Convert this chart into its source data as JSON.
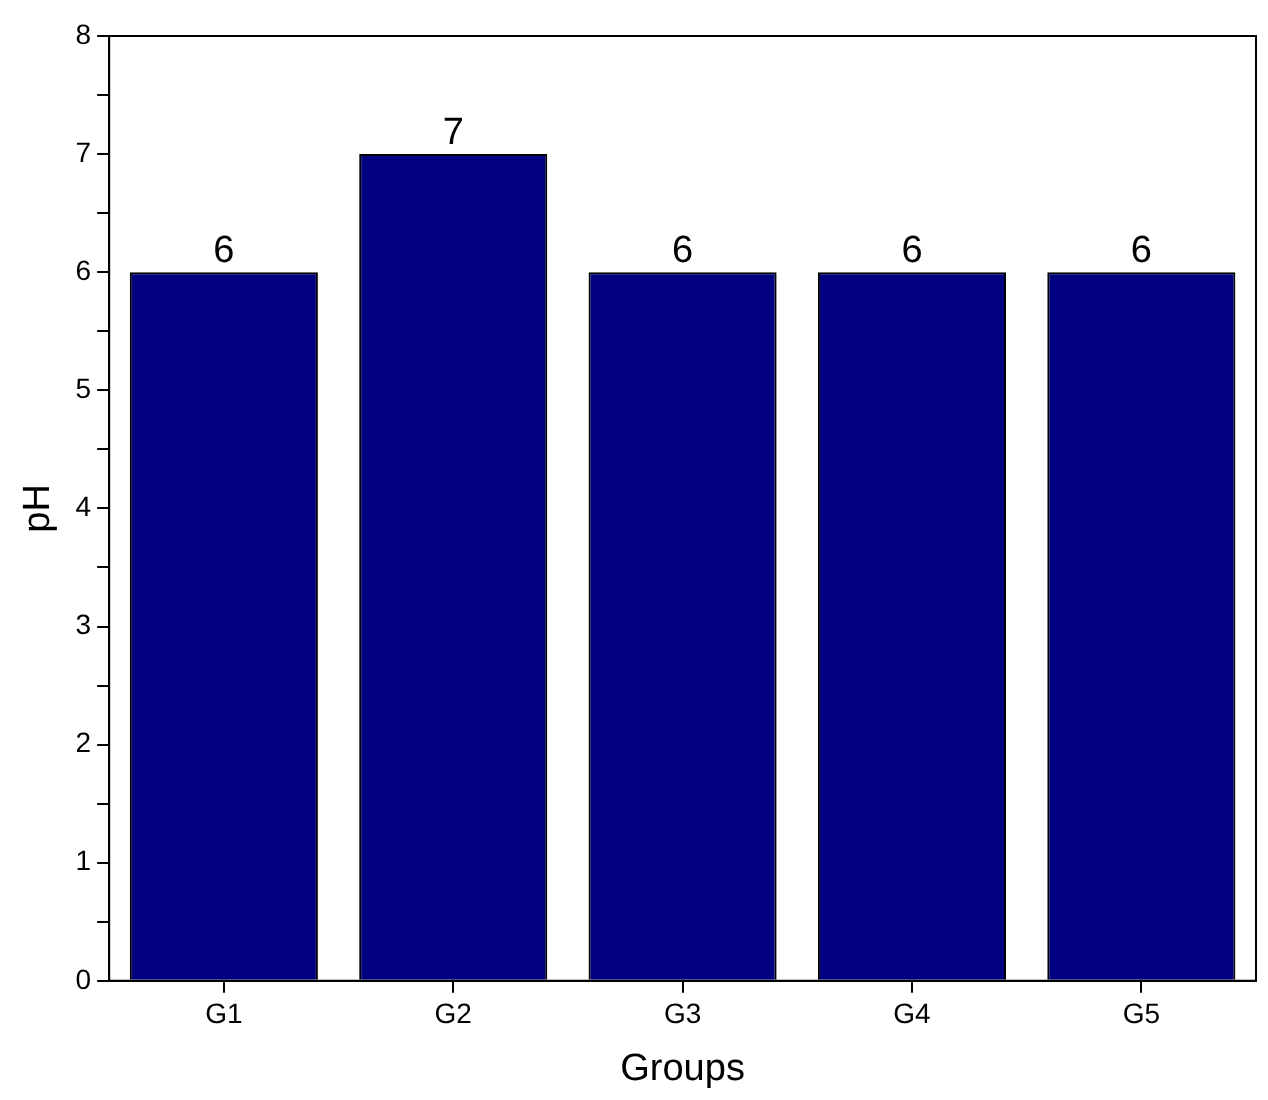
{
  "chart_data": {
    "type": "bar",
    "xlabel": "Groups",
    "ylabel": "pH",
    "categories": [
      "G1",
      "G2",
      "G3",
      "G4",
      "G5"
    ],
    "values": [
      6,
      7,
      6,
      6,
      6
    ],
    "color": "#000080",
    "ylim": [
      0,
      8
    ],
    "yticks": [
      0,
      {
        "value": 0.5,
        "label": null
      },
      1,
      {
        "value": 1.5,
        "label": null
      },
      2,
      {
        "value": 2.5,
        "label": null
      },
      3,
      {
        "value": 3.5,
        "label": null
      },
      4,
      {
        "value": 4.5,
        "label": null
      },
      5,
      {
        "value": 5.5,
        "label": null
      },
      6,
      {
        "value": 6.5,
        "label": null
      },
      7,
      {
        "value": 7.5,
        "label": null
      },
      8
    ],
    "data_labels": true,
    "grid": false,
    "legend": false
  }
}
